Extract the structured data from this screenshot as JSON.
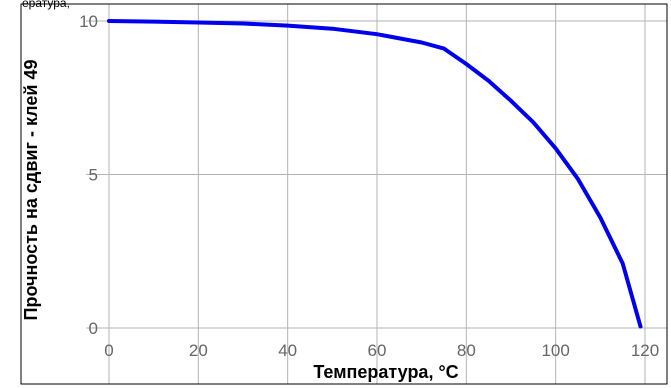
{
  "chart_data": {
    "type": "line",
    "title": "",
    "top_text": "ература,",
    "xlabel": "Температура, °C",
    "ylabel": "Прочность на сдвиг - клей 49",
    "xlim": [
      0,
      120
    ],
    "ylim": [
      0,
      10
    ],
    "x_ticks": [
      "0",
      "20",
      "40",
      "60",
      "80",
      "100",
      "120"
    ],
    "y_ticks": [
      "0",
      "5",
      "10"
    ],
    "grid": true,
    "legend": "none",
    "series": [
      {
        "color": "#0000ee",
        "points": [
          [
            0,
            10.0
          ],
          [
            10,
            9.98
          ],
          [
            20,
            9.95
          ],
          [
            30,
            9.92
          ],
          [
            40,
            9.85
          ],
          [
            50,
            9.75
          ],
          [
            60,
            9.57
          ],
          [
            70,
            9.3
          ],
          [
            75,
            9.1
          ],
          [
            80,
            8.6
          ],
          [
            85,
            8.05
          ],
          [
            90,
            7.4
          ],
          [
            95,
            6.7
          ],
          [
            100,
            5.85
          ],
          [
            105,
            4.85
          ],
          [
            110,
            3.6
          ],
          [
            115,
            2.1
          ],
          [
            119,
            0.05
          ]
        ]
      }
    ]
  }
}
